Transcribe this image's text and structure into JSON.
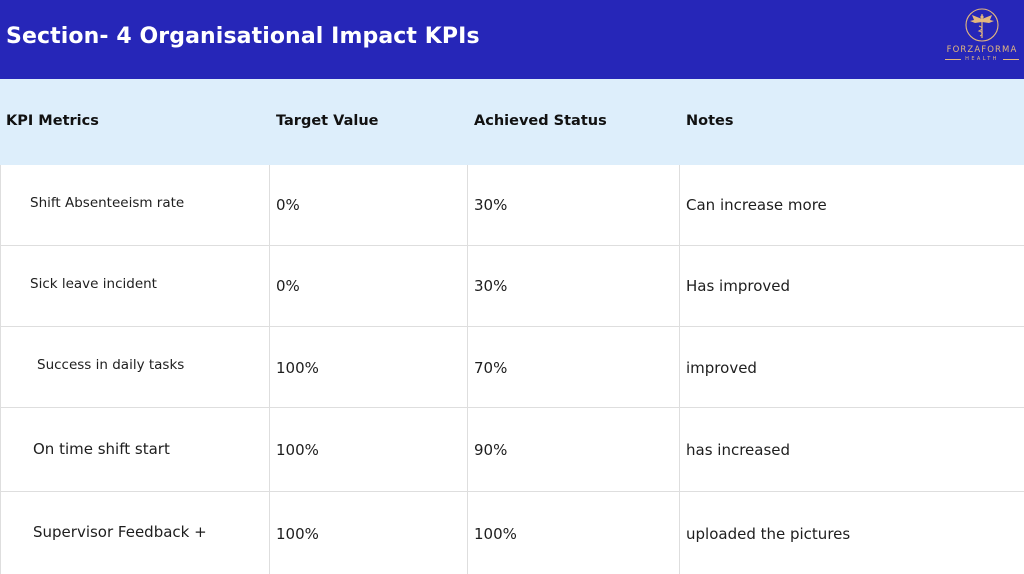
{
  "header": {
    "title": "Section- 4 Organisational Impact KPIs",
    "background": "#2626b8"
  },
  "logo": {
    "name": "FORZAFORMA",
    "subtitle": "HEALTH",
    "color": "#e3b77e"
  },
  "table": {
    "header_background": "#ddeefb",
    "columns": [
      "KPI Metrics",
      "Target Value",
      "Achieved Status",
      "Notes"
    ],
    "rows": [
      {
        "metric": "Shift Absenteeism rate",
        "target": "0%",
        "achieved": "30%",
        "notes": "Can increase more"
      },
      {
        "metric": "Sick leave incident",
        "target": "0%",
        "achieved": "30%",
        "notes": "Has improved"
      },
      {
        "metric": "Success in daily tasks",
        "target": "100%",
        "achieved": "70%",
        "notes": "improved"
      },
      {
        "metric": "On time shift start",
        "target": "100%",
        "achieved": "90%",
        "notes": "has increased"
      },
      {
        "metric": "Supervisor Feedback +",
        "target": "100%",
        "achieved": "100%",
        "notes": "uploaded the pictures"
      }
    ]
  }
}
